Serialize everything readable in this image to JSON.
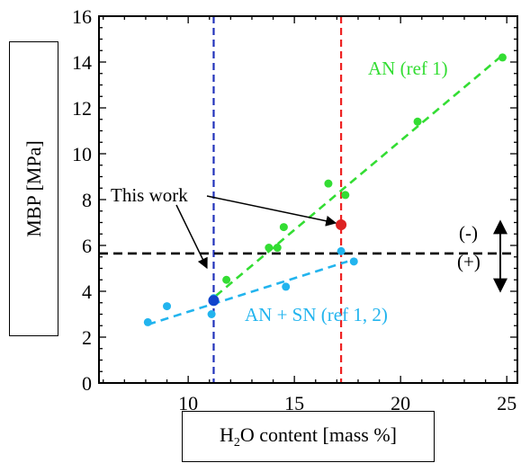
{
  "chart_data": {
    "type": "scatter",
    "xlabel_parts": [
      "H",
      "2",
      "O content [mass %]"
    ],
    "ylabel": "MBP [MPa]",
    "xlim": [
      5.8,
      25.5
    ],
    "ylim": [
      0,
      16
    ],
    "xticks": [
      10,
      15,
      20,
      25
    ],
    "yticks": [
      0,
      2,
      4,
      6,
      8,
      10,
      12,
      14,
      16
    ],
    "series": [
      {
        "name": "AN (ref 1)",
        "color": "#33dd33",
        "points": [
          [
            11.8,
            4.5
          ],
          [
            13.8,
            5.9
          ],
          [
            14.2,
            5.9
          ],
          [
            14.5,
            6.8
          ],
          [
            16.6,
            8.7
          ],
          [
            17.4,
            8.2
          ],
          [
            20.8,
            11.4
          ],
          [
            24.8,
            14.2
          ]
        ],
        "fit": [
          [
            11.3,
            3.8
          ],
          [
            24.8,
            14.3
          ]
        ]
      },
      {
        "name": "AN + SN (ref 1, 2)",
        "color": "#22b4ee",
        "points": [
          [
            8.1,
            2.65
          ],
          [
            9.0,
            3.35
          ],
          [
            11.1,
            3.0
          ],
          [
            11.2,
            3.7
          ],
          [
            14.6,
            4.2
          ],
          [
            17.2,
            5.75
          ],
          [
            17.8,
            5.3
          ]
        ],
        "fit": [
          [
            8.1,
            2.55
          ],
          [
            17.5,
            5.3
          ]
        ]
      },
      {
        "name": "This work",
        "points": [
          {
            "x": 11.2,
            "y": 3.6,
            "color": "#1144cc"
          },
          {
            "x": 17.2,
            "y": 6.9,
            "color": "#dd2222"
          }
        ]
      }
    ],
    "reference_lines": [
      {
        "axis": "x",
        "value": 11.2,
        "color": "#2233bb"
      },
      {
        "axis": "x",
        "value": 17.2,
        "color": "#ee2222"
      },
      {
        "axis": "y",
        "value": 5.65,
        "color": "#000000"
      }
    ],
    "annotations": {
      "this_work": "This work",
      "an_label": "AN (ref 1)",
      "ansn_label": "AN + SN (ref 1, 2)",
      "minus_label": "(-)",
      "plus_label": "(+)"
    }
  }
}
